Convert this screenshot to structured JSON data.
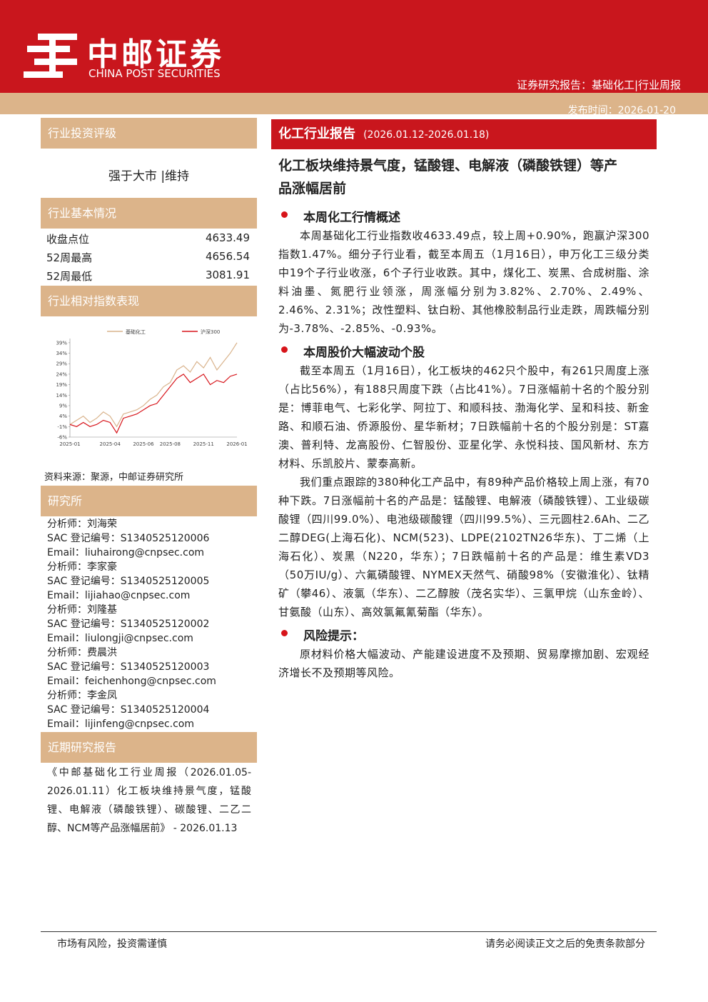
{
  "header": {
    "logo_cn": "中邮证券",
    "logo_en": "CHINA POST SECURITIES",
    "report_type": "证券研究报告：基础化工|行业周报",
    "publish_date": "发布时间：2026-01-20"
  },
  "sidebar": {
    "rating_title": "行业投资评级",
    "rating": "强于大市 |维持",
    "basics_title": "行业基本情况",
    "basics": [
      [
        "收盘点位",
        4633.49
      ],
      [
        "52周最高",
        4656.54
      ],
      [
        "52周最低",
        3081.91
      ]
    ],
    "chart_title": "行业相对指数表现",
    "chart_source": "资料来源：聚源，中邮证券研究所",
    "team_title": "研究所",
    "analysts": [
      "分析师：刘海荣",
      "SAC 登记编号：S1340525120006",
      "Email：liuhairong@cnpsec.com",
      "分析师：李家豪",
      "SAC 登记编号：S1340525120005",
      "Email：lijiahao@cnpsec.com",
      "分析师：刘隆基",
      "SAC 登记编号：S1340525120002",
      "Email：liulongji@cnpsec.com",
      "分析师：费晨洪",
      "SAC 登记编号：S1340525120003",
      "Email：feichenhong@cnpsec.com",
      "分析师：李金凤",
      "SAC 登记编号：S1340525120004",
      "Email：lijinfeng@cnpsec.com"
    ],
    "recent_title": "近期研究报告",
    "recent_report": "《中邮基础化工行业周报（2026.01.05-2026.01.11）化工板块维持景气度，锰酸锂、电解液（磷酸铁锂）、碳酸锂、二乙二醇、NCM等产品涨幅居前》 - 2026.01.13"
  },
  "chart_data": {
    "type": "line",
    "categories": [
      "2025-01",
      null,
      null,
      null,
      null,
      null,
      "2025-04",
      null,
      null,
      null,
      null,
      "2025-06",
      null,
      null,
      null,
      "2025-08",
      null,
      null,
      null,
      null,
      "2025-11",
      null,
      null,
      null,
      null,
      "2026-01"
    ],
    "series": [
      {
        "name": "基础化工",
        "color": "#d9b38c",
        "values": [
          0,
          2,
          4,
          1,
          3,
          6,
          4,
          -1,
          5,
          6,
          7,
          9,
          12,
          14,
          18,
          20,
          26,
          28,
          25,
          30,
          27,
          32,
          26,
          30,
          34,
          39
        ]
      },
      {
        "name": "沪深300",
        "color": "#d7141a",
        "values": [
          0,
          -1,
          1,
          -1,
          0,
          2,
          1,
          -4,
          3,
          4,
          5,
          7,
          9,
          10,
          14,
          18,
          22,
          24,
          20,
          22,
          24,
          19,
          21,
          20,
          23,
          24
        ]
      }
    ],
    "ylim": [
      -6,
      41
    ],
    "yticks": [
      {
        "value": -6,
        "label": "-6%"
      },
      {
        "value": -1,
        "label": "-1%"
      },
      {
        "value": 4,
        "label": "4%"
      },
      {
        "value": 9,
        "label": "9%"
      },
      {
        "value": 14,
        "label": "14%"
      },
      {
        "value": 19,
        "label": "19%"
      },
      {
        "value": 24,
        "label": "24%"
      },
      {
        "value": 29,
        "label": "29%"
      },
      {
        "value": 34,
        "label": "34%"
      },
      {
        "value": 39,
        "label": "39%"
      }
    ],
    "grid": false
  },
  "main": {
    "banner": "化工行业报告",
    "banner_dates": "(2026.01.12-2026.01.18)",
    "title": "化工板块维持景气度，锰酸锂、电解液（磷酸铁锂）等产品涨幅居前",
    "sections": [
      {
        "heading": "本周化工行情概述",
        "paragraphs": [
          "本周基础化工行业指数收4633.49点，较上周+0.90%，跑赢沪深300指数1.47%。细分子行业看，截至本周五（1月16日），申万化工三级分类中19个子行业收涨，6个子行业收跌。其中，煤化工、炭黑、合成树脂、涂料油墨、氮肥行业领涨，周涨幅分别为3.82%、2.70%、2.49%、2.46%、2.31%；改性塑料、钛白粉、其他橡胶制品行业走跌，周跌幅分别为-3.78%、-2.85%、-0.93%。"
        ]
      },
      {
        "heading": "本周股价大幅波动个股",
        "paragraphs": [
          "截至本周五（1月16日），化工板块的462只个股中，有261只周度上涨（占比56%），有188只周度下跌（占比41%）。7日涨幅前十名的个股分别是：博菲电气、七彩化学、阿拉丁、和顺科技、渤海化学、呈和科技、新金路、和顺石油、侨源股份、星华新材；7日跌幅前十名的个股分别是：ST嘉澳、普利特、龙高股份、仁智股份、亚星化学、永悦科技、国风新材、东方材料、乐凯胶片、蒙泰高新。",
          "我们重点跟踪的380种化工产品中，有89种产品价格较上周上涨，有70种下跌。7日涨幅前十名的产品是：锰酸锂、电解液（磷酸铁锂）、工业级碳酸锂（四川99.0%）、电池级碳酸锂（四川99.5%）、三元圆柱2.6Ah、二乙二醇DEG(上海石化)、NCM(523)、LDPE(2102TN26华东)、丁二烯（上海石化）、炭黑（N220，华东）；7日跌幅前十名的产品是：维生素VD3（50万IU/g）、六氟磷酸锂、NYMEX天然气、硝酸98%（安徽淮化）、钛精矿（攀46）、液氯（华东）、二乙醇胺（茂名实华）、三氯甲烷（山东金岭）、甘氨酸（山东）、高效氯氟氰菊酯（华东）。"
        ]
      },
      {
        "heading": "风险提示：",
        "paragraphs": [
          "原材料价格大幅波动、产能建设进度不及预期、贸易摩擦加剧、宏观经济增长不及预期等风险。"
        ]
      }
    ]
  },
  "footer": {
    "left": "市场有风险，投资需谨慎",
    "right": "请务必阅读正文之后的免责条款部分"
  }
}
